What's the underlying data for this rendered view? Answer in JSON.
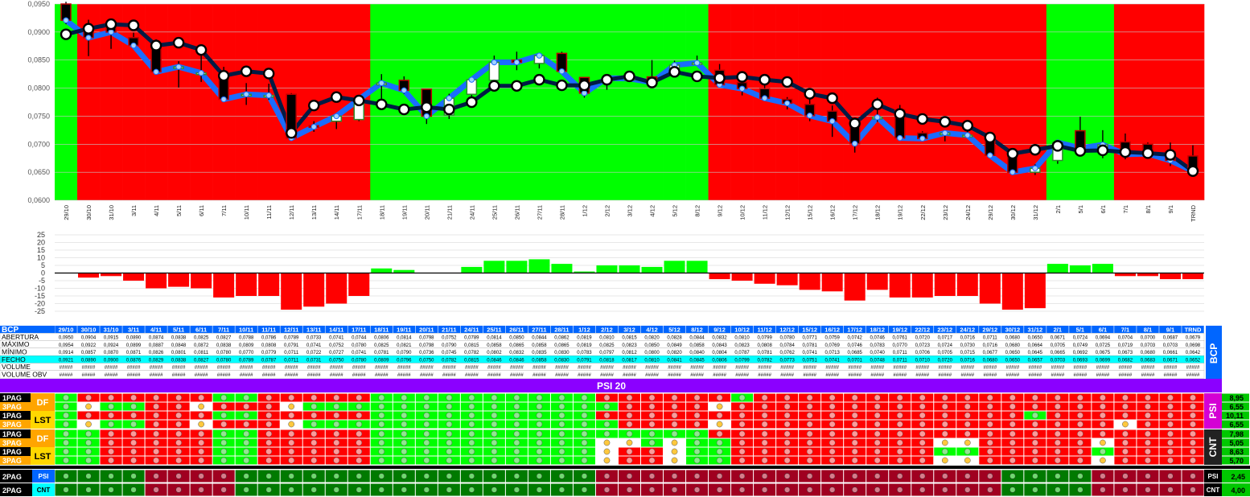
{
  "ticker": "BCP",
  "index_name": "PSI 20",
  "colors": {
    "bull_green": "#00FF00",
    "bear_red": "#FF0000",
    "navy": "#001B44",
    "blue_line": "#1A6CFF",
    "purple": "#8B00FF",
    "dark_green": "#007A00",
    "dark_red": "#A00020",
    "label_orange": "#FFA500",
    "label_yellow": "#FFD700",
    "label_cyan": "#00FFFF",
    "label_blue": "#0066FF",
    "side_green": "#00C800"
  },
  "chart_data": [
    {
      "type": "candlestick",
      "title": "",
      "ylim": [
        0.06,
        0.095
      ],
      "yticks": [
        "0,0950",
        "0,0900",
        "0,0850",
        "0,0800",
        "0,0750",
        "0,0700",
        "0,0650",
        "0,0600"
      ],
      "categories": [
        "29/10",
        "30/10",
        "31/10",
        "3/11",
        "4/11",
        "5/11",
        "6/11",
        "7/11",
        "10/11",
        "11/11",
        "12/11",
        "13/11",
        "14/11",
        "17/11",
        "18/11",
        "19/11",
        "20/11",
        "21/11",
        "24/11",
        "25/11",
        "26/11",
        "27/11",
        "28/11",
        "1/12",
        "2/12",
        "3/12",
        "4/12",
        "5/12",
        "8/12",
        "9/12",
        "10/12",
        "11/12",
        "12/12",
        "15/12",
        "16/12",
        "17/12",
        "18/12",
        "19/12",
        "22/12",
        "23/12",
        "24/12",
        "29/12",
        "30/12",
        "31/12",
        "2/1",
        "5/1",
        "6/1",
        "7/1",
        "8/1",
        "9/1",
        "TRND"
      ],
      "background": [
        "G",
        "R",
        "R",
        "R",
        "R",
        "R",
        "R",
        "R",
        "R",
        "R",
        "R",
        "R",
        "R",
        "R",
        "G",
        "G",
        "G",
        "G",
        "G",
        "G",
        "G",
        "G",
        "G",
        "G",
        "G",
        "G",
        "G",
        "G",
        "G",
        "R",
        "R",
        "R",
        "R",
        "R",
        "R",
        "R",
        "R",
        "R",
        "R",
        "R",
        "R",
        "R",
        "R",
        "R",
        "G",
        "G",
        "G",
        "R",
        "R",
        "R",
        "R"
      ],
      "open": [
        0.095,
        0.0904,
        0.0915,
        0.089,
        0.0874,
        0.0838,
        0.0825,
        0.0827,
        0.0788,
        0.0786,
        0.0789,
        0.0733,
        0.0741,
        0.0744,
        0.0806,
        0.0814,
        0.0798,
        0.0752,
        0.0789,
        0.0814,
        0.085,
        0.0844,
        0.0862,
        0.0819,
        0.081,
        0.0815,
        0.082,
        0.0828,
        0.0844,
        0.0832,
        0.081,
        0.0799,
        0.078,
        0.0771,
        0.0759,
        0.0742,
        0.0746,
        0.0761,
        0.072,
        0.0717,
        0.0716,
        0.0711,
        0.068,
        0.065,
        0.0671,
        0.0724,
        0.0694,
        0.0704,
        0.07,
        0.0687,
        0.0679
      ],
      "high": [
        0.0954,
        0.0922,
        0.0924,
        0.0899,
        0.0887,
        0.0848,
        0.0872,
        0.0838,
        0.0809,
        0.0808,
        0.0791,
        0.0741,
        0.0752,
        0.078,
        0.0825,
        0.0821,
        0.0798,
        0.079,
        0.0815,
        0.0858,
        0.0865,
        0.0858,
        0.0865,
        0.0819,
        0.0825,
        0.0823,
        0.085,
        0.0849,
        0.0858,
        0.0843,
        0.0823,
        0.0808,
        0.0784,
        0.0781,
        0.0769,
        0.0746,
        0.0783,
        0.077,
        0.0723,
        0.0724,
        0.073,
        0.0716,
        0.068,
        0.0664,
        0.0705,
        0.0749,
        0.0725,
        0.0719,
        0.0703,
        0.0703,
        0.0698
      ],
      "low": [
        0.0914,
        0.0857,
        0.087,
        0.0871,
        0.0826,
        0.0801,
        0.0811,
        0.078,
        0.077,
        0.0779,
        0.0711,
        0.0722,
        0.0727,
        0.0741,
        0.0781,
        0.079,
        0.0736,
        0.0745,
        0.0782,
        0.0802,
        0.0832,
        0.0835,
        0.083,
        0.0783,
        0.0797,
        0.0812,
        0.08,
        0.082,
        0.084,
        0.0804,
        0.0787,
        0.0781,
        0.0762,
        0.0741,
        0.0713,
        0.0685,
        0.074,
        0.0711,
        0.0706,
        0.0705,
        0.0715,
        0.0677,
        0.065,
        0.0645,
        0.0665,
        0.0692,
        0.0675,
        0.0673,
        0.068,
        0.0661,
        0.0642
      ],
      "close": [
        0.0921,
        0.089,
        0.09,
        0.0876,
        0.0829,
        0.0838,
        0.0827,
        0.078,
        0.0789,
        0.0787,
        0.0711,
        0.0731,
        0.075,
        0.078,
        0.0809,
        0.0796,
        0.075,
        0.0782,
        0.0815,
        0.0846,
        0.0846,
        0.0858,
        0.083,
        0.0791,
        0.0818,
        0.0817,
        0.081,
        0.0841,
        0.0845,
        0.0806,
        0.0799,
        0.0782,
        0.0773,
        0.0751,
        0.0741,
        0.0701,
        0.0748,
        0.0711,
        0.071,
        0.072,
        0.0716,
        0.068,
        0.065,
        0.0657,
        0.0703,
        0.0693,
        0.0699,
        0.0682,
        0.0683,
        0.0671,
        0.0652
      ],
      "line_navy": [
        0.0896,
        0.0906,
        0.0914,
        0.0912,
        0.0876,
        0.0881,
        0.0868,
        0.0822,
        0.083,
        0.0826,
        0.072,
        0.0769,
        0.0784,
        0.0778,
        0.0771,
        0.0762,
        0.0766,
        0.0762,
        0.0775,
        0.0804,
        0.0804,
        0.0815,
        0.0805,
        0.0805,
        0.0815,
        0.0821,
        0.081,
        0.0829,
        0.0821,
        0.0818,
        0.082,
        0.0815,
        0.0811,
        0.079,
        0.0782,
        0.0737,
        0.0771,
        0.0754,
        0.0745,
        0.074,
        0.0733,
        0.0712,
        0.0683,
        0.069,
        0.0697,
        0.0688,
        0.0689,
        0.0686,
        0.0684,
        0.0681,
        0.0652
      ],
      "line_blue": [
        0.0921,
        0.089,
        0.09,
        0.0876,
        0.0829,
        0.0838,
        0.0827,
        0.078,
        0.0789,
        0.0787,
        0.0711,
        0.0731,
        0.075,
        0.078,
        0.0809,
        0.0796,
        0.075,
        0.0782,
        0.0815,
        0.0846,
        0.0846,
        0.0858,
        0.083,
        0.0791,
        0.0818,
        0.0817,
        0.081,
        0.0841,
        0.0845,
        0.0806,
        0.0799,
        0.0782,
        0.0773,
        0.0751,
        0.0741,
        0.0701,
        0.0748,
        0.0711,
        0.071,
        0.072,
        0.0716,
        0.068,
        0.065,
        0.0657,
        0.0703,
        0.0693,
        0.0699,
        0.0682,
        0.0683,
        0.0671,
        0.0652
      ]
    },
    {
      "type": "bar",
      "title": "",
      "ylim": [
        -25,
        25
      ],
      "yticks": [
        "25",
        "20",
        "15",
        "10",
        "5",
        "0",
        "-5",
        "-10",
        "-15",
        "-20",
        "-25"
      ],
      "values": [
        0,
        -3,
        -2,
        -5,
        -10,
        -9,
        -10,
        -16,
        -15,
        -15,
        -24,
        -22,
        -20,
        -15,
        3,
        2,
        0,
        0,
        4,
        8,
        8,
        9,
        6,
        1,
        5,
        5,
        4,
        8,
        8,
        -4,
        -5,
        -7,
        -8,
        -11,
        -12,
        -18,
        -11,
        -16,
        -16,
        -15,
        -15,
        -20,
        -24,
        -23,
        6,
        5,
        6,
        -2,
        -2,
        -4,
        -4
      ]
    }
  ],
  "table": {
    "rows": [
      {
        "label": "ABERTURA",
        "values": [
          "0,0950",
          "0,0904",
          "0,0915",
          "0,0890",
          "0,0874",
          "0,0838",
          "0,0825",
          "0,0827",
          "0,0788",
          "0,0786",
          "0,0789",
          "0,0733",
          "0,0741",
          "0,0744",
          "0,0806",
          "0,0814",
          "0,0798",
          "0,0752",
          "0,0789",
          "0,0814",
          "0,0850",
          "0,0844",
          "0,0862",
          "0,0819",
          "0,0810",
          "0,0815",
          "0,0820",
          "0,0828",
          "0,0844",
          "0,0832",
          "0,0810",
          "0,0799",
          "0,0780",
          "0,0771",
          "0,0759",
          "0,0742",
          "0,0746",
          "0,0761",
          "0,0720",
          "0,0717",
          "0,0716",
          "0,0711",
          "0,0680",
          "0,0650",
          "0,0671",
          "0,0724",
          "0,0694",
          "0,0704",
          "0,0700",
          "0,0687",
          "0,0679"
        ]
      },
      {
        "label": "MÁXIMO",
        "values": [
          "0,0954",
          "0,0922",
          "0,0924",
          "0,0899",
          "0,0887",
          "0,0848",
          "0,0872",
          "0,0838",
          "0,0809",
          "0,0808",
          "0,0791",
          "0,0741",
          "0,0752",
          "0,0780",
          "0,0825",
          "0,0821",
          "0,0798",
          "0,0790",
          "0,0815",
          "0,0858",
          "0,0865",
          "0,0858",
          "0,0865",
          "0,0819",
          "0,0825",
          "0,0823",
          "0,0850",
          "0,0849",
          "0,0858",
          "0,0843",
          "0,0823",
          "0,0808",
          "0,0784",
          "0,0781",
          "0,0769",
          "0,0746",
          "0,0783",
          "0,0770",
          "0,0723",
          "0,0724",
          "0,0730",
          "0,0716",
          "0,0680",
          "0,0664",
          "0,0705",
          "0,0749",
          "0,0725",
          "0,0719",
          "0,0703",
          "0,0703",
          "0,0698"
        ]
      },
      {
        "label": "MÍNIMO",
        "values": [
          "0,0914",
          "0,0857",
          "0,0870",
          "0,0871",
          "0,0826",
          "0,0801",
          "0,0811",
          "0,0780",
          "0,0770",
          "0,0779",
          "0,0711",
          "0,0722",
          "0,0727",
          "0,0741",
          "0,0781",
          "0,0790",
          "0,0736",
          "0,0745",
          "0,0782",
          "0,0802",
          "0,0832",
          "0,0835",
          "0,0830",
          "0,0783",
          "0,0797",
          "0,0812",
          "0,0800",
          "0,0820",
          "0,0840",
          "0,0804",
          "0,0787",
          "0,0781",
          "0,0762",
          "0,0741",
          "0,0713",
          "0,0685",
          "0,0740",
          "0,0711",
          "0,0706",
          "0,0705",
          "0,0715",
          "0,0677",
          "0,0650",
          "0,0645",
          "0,0665",
          "0,0692",
          "0,0675",
          "0,0673",
          "0,0680",
          "0,0661",
          "0,0642"
        ]
      },
      {
        "label": "FECHO",
        "values": [
          "0,0921",
          "0,0890",
          "0,0900",
          "0,0876",
          "0,0829",
          "0,0838",
          "0,0827",
          "0,0780",
          "0,0789",
          "0,0787",
          "0,0711",
          "0,0731",
          "0,0750",
          "0,0780",
          "0,0809",
          "0,0796",
          "0,0750",
          "0,0782",
          "0,0815",
          "0,0846",
          "0,0846",
          "0,0858",
          "0,0830",
          "0,0791",
          "0,0818",
          "0,0817",
          "0,0810",
          "0,0841",
          "0,0845",
          "0,0806",
          "0,0799",
          "0,0782",
          "0,0773",
          "0,0751",
          "0,0741",
          "0,0701",
          "0,0748",
          "0,0711",
          "0,0710",
          "0,0720",
          "0,0716",
          "0,0680",
          "0,0650",
          "0,0657",
          "0,0703",
          "0,0693",
          "0,0699",
          "0,0682",
          "0,0683",
          "0,0671",
          "0,0652"
        ]
      },
      {
        "label": "VOLUME",
        "values": []
      },
      {
        "label": "VOLUME OBV",
        "values": []
      }
    ],
    "placeholder": "#####"
  },
  "signals": {
    "psi_group": {
      "side_label": "PSI",
      "rows": [
        {
          "label": "1PAG",
          "value": "8,95",
          "pattern": "GRRRRRRGGRRRRRGGGGGGGGGGRRRRRRGRRRRRRRRRRRRRRRRRRRRRRR"
        },
        {
          "label": "3PAG",
          "value": "6,55",
          "pattern": "GYGGRRYRRRYGGGGGGGGGGGGGGRRRRYRRRRRRRRRRRRRRRRRRRRRR"
        },
        {
          "label": "1PAG",
          "value": "10,11",
          "pattern": "GRRRRRRGGRRRRRGGGGGGGGGGRRRRRRRRRRRRRRRRRRRGRRRRRRRR"
        },
        {
          "label": "3PAG",
          "value": "6,55",
          "pattern": "GYGGRRYRRRYGGGGGGGGGGGGGGRRRRYRRRRRRRRRRRRRRRRRYRRRRR"
        }
      ],
      "labels_right": [
        "DF",
        "LST"
      ]
    },
    "cnt_group": {
      "side_label": "CNT",
      "rows": [
        {
          "label": "1PAG",
          "value": "7,98",
          "pattern": "GGRRRRRGGRRRRRGGGGGGGGGGGGGGGRRRRRRRRRRRRRRRRRRRRRRR"
        },
        {
          "label": "3PAG",
          "value": "5,05",
          "pattern": "GGRRRRRGGRRRRRGGGGGGGGGGYYGYGGRRRRRRRRRYYRRRRRYRRRRR"
        },
        {
          "label": "1PAG",
          "value": "8,63",
          "pattern": "GGRRRRRGGRRRRRGGGGGGGGGGYRRYGGRRRRRRRRRGGRRRRRGRRRRR"
        },
        {
          "label": "3PAG",
          "value": "5,70",
          "pattern": "GGRRRRRGGRRRRRGGGGGGGGGGYRRYGGRRRRRRRRRYYRRRRRYRRRRR"
        }
      ],
      "labels_right": [
        "DF",
        "LST"
      ]
    },
    "bottom": [
      {
        "label": "2PAG",
        "tag": "PSI",
        "side": "PSI",
        "value": "2,45",
        "pattern": "GGGGRRRRGGGGGGGGGGGGGGGGRRRRRRRRRRRRRRRRRRGGGGRRRRRRR"
      },
      {
        "label": "2PAG",
        "tag": "CNT",
        "side": "CNT",
        "value": "4,00",
        "pattern": "GGGGRRRRGGGGGGGGGGGGGGGGRRRRRRRRRRRRRRRRRRGGGGRRRRRRR"
      }
    ]
  }
}
